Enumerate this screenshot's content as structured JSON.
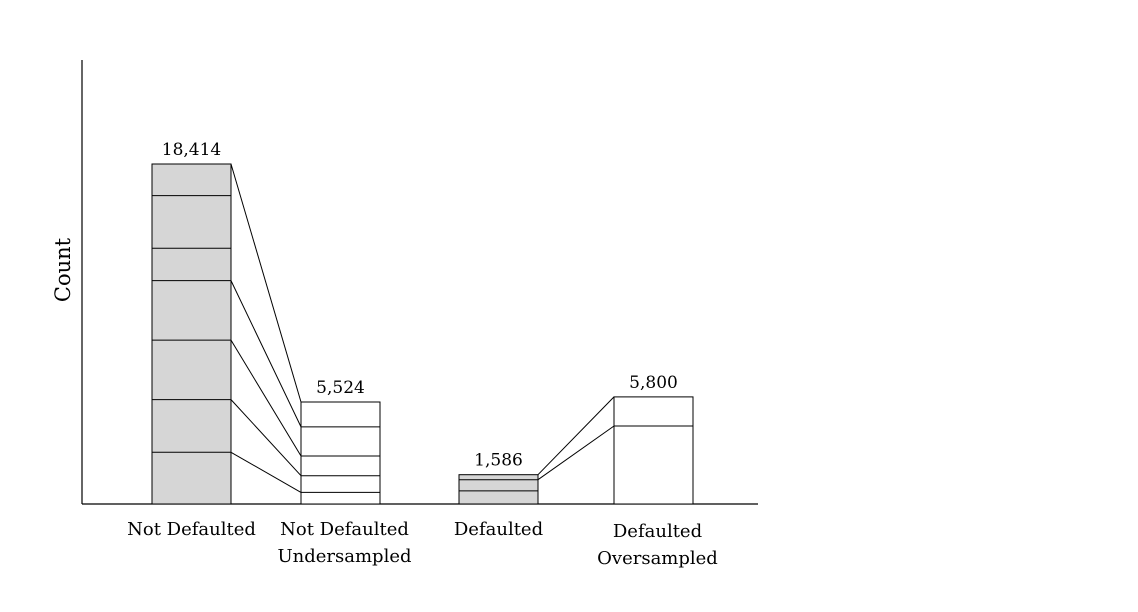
{
  "chart_data": {
    "type": "bar",
    "title": "",
    "xlabel": "",
    "ylabel": "Count",
    "ylim": [
      0,
      24000
    ],
    "grid": false,
    "legend": "none",
    "categories": [
      {
        "lines": [
          "Not Defaulted"
        ],
        "value": 18414,
        "value_label": "18,414",
        "shaded": true,
        "segments": 6
      },
      {
        "lines": [
          "Not Defaulted",
          "Undersampled"
        ],
        "value": 5524,
        "value_label": "5,524",
        "shaded": false,
        "segments": 5
      },
      {
        "lines": [
          "Defaulted"
        ],
        "value": 1586,
        "value_label": "1,586",
        "shaded": true,
        "segments": 2
      },
      {
        "lines": [
          "Defaulted",
          "Oversampled"
        ],
        "value": 5800,
        "value_label": "5,800",
        "shaded": false,
        "segments": 2
      }
    ],
    "colors": {
      "shaded_fill": "#d6d6d6",
      "unshaded_fill": "#ffffff",
      "stroke": "#000000"
    }
  }
}
